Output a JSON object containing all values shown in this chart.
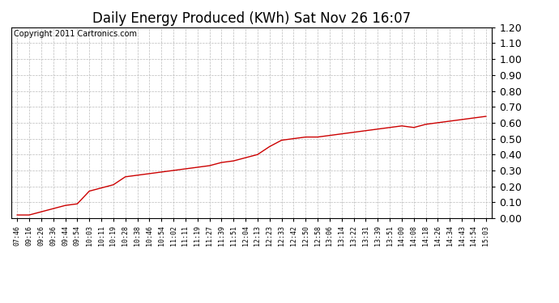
{
  "title": "Daily Energy Produced (KWh) Sat Nov 26 16:07",
  "copyright_text": "Copyright 2011 Cartronics.com",
  "line_color": "#cc0000",
  "background_color": "#ffffff",
  "plot_bg_color": "#ffffff",
  "grid_color": "#bbbbbb",
  "ylim": [
    0.0,
    1.2
  ],
  "yticks": [
    0.0,
    0.1,
    0.2,
    0.3,
    0.4,
    0.5,
    0.6,
    0.7,
    0.8,
    0.9,
    1.0,
    1.1,
    1.2
  ],
  "x_labels": [
    "07:46",
    "09:16",
    "09:26",
    "09:36",
    "09:44",
    "09:54",
    "10:03",
    "10:11",
    "10:19",
    "10:28",
    "10:38",
    "10:46",
    "10:54",
    "11:02",
    "11:11",
    "11:19",
    "11:27",
    "11:39",
    "11:51",
    "12:04",
    "12:13",
    "12:23",
    "12:33",
    "12:42",
    "12:50",
    "12:58",
    "13:06",
    "13:14",
    "13:22",
    "13:31",
    "13:39",
    "13:51",
    "14:00",
    "14:08",
    "14:18",
    "14:26",
    "14:34",
    "14:43",
    "14:54",
    "15:03"
  ],
  "y_values": [
    0.02,
    0.02,
    0.04,
    0.06,
    0.08,
    0.09,
    0.17,
    0.19,
    0.21,
    0.26,
    0.27,
    0.28,
    0.29,
    0.3,
    0.31,
    0.32,
    0.33,
    0.35,
    0.36,
    0.38,
    0.4,
    0.45,
    0.49,
    0.5,
    0.51,
    0.51,
    0.52,
    0.53,
    0.54,
    0.55,
    0.56,
    0.57,
    0.58,
    0.57,
    0.59,
    0.6,
    0.61,
    0.62,
    0.63,
    0.64
  ],
  "title_fontsize": 12,
  "copyright_fontsize": 7,
  "ytick_fontsize": 9,
  "xtick_fontsize": 6
}
